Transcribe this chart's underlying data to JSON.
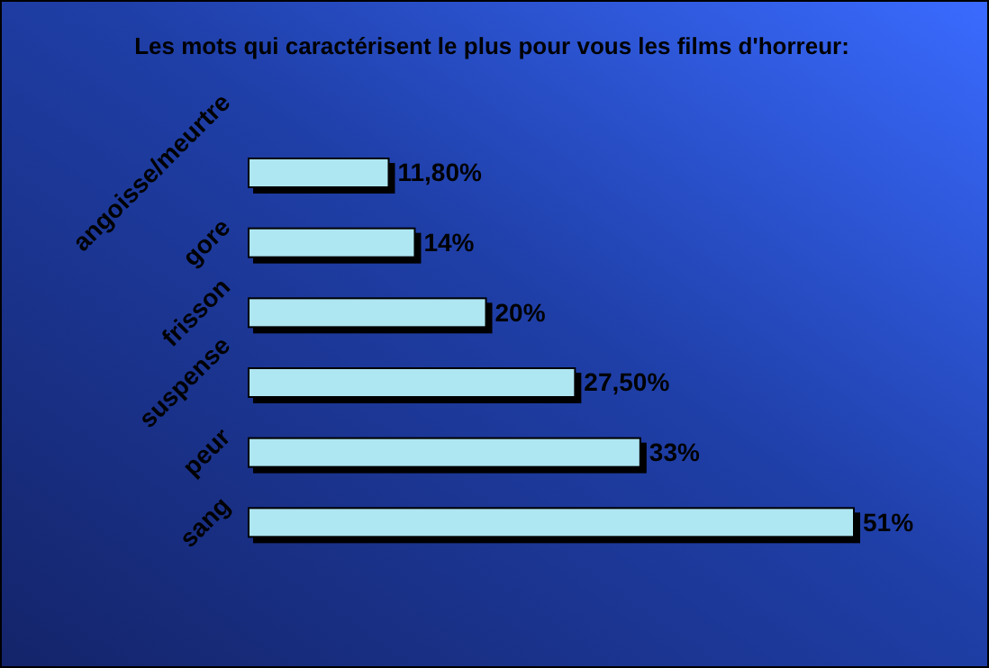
{
  "chart_data": {
    "type": "bar",
    "orientation": "horizontal",
    "title": "Les mots qui caractérisent le plus pour vous les films d'horreur:",
    "categories": [
      "angoisse/meurtre",
      "gore",
      "frisson",
      "suspense",
      "peur",
      "sang"
    ],
    "values": [
      11.8,
      14,
      20,
      27.5,
      33,
      51
    ],
    "value_labels": [
      "11,80%",
      "14%",
      "20%",
      "27,50%",
      "33%",
      "51%"
    ],
    "color": "#aee6f2"
  }
}
